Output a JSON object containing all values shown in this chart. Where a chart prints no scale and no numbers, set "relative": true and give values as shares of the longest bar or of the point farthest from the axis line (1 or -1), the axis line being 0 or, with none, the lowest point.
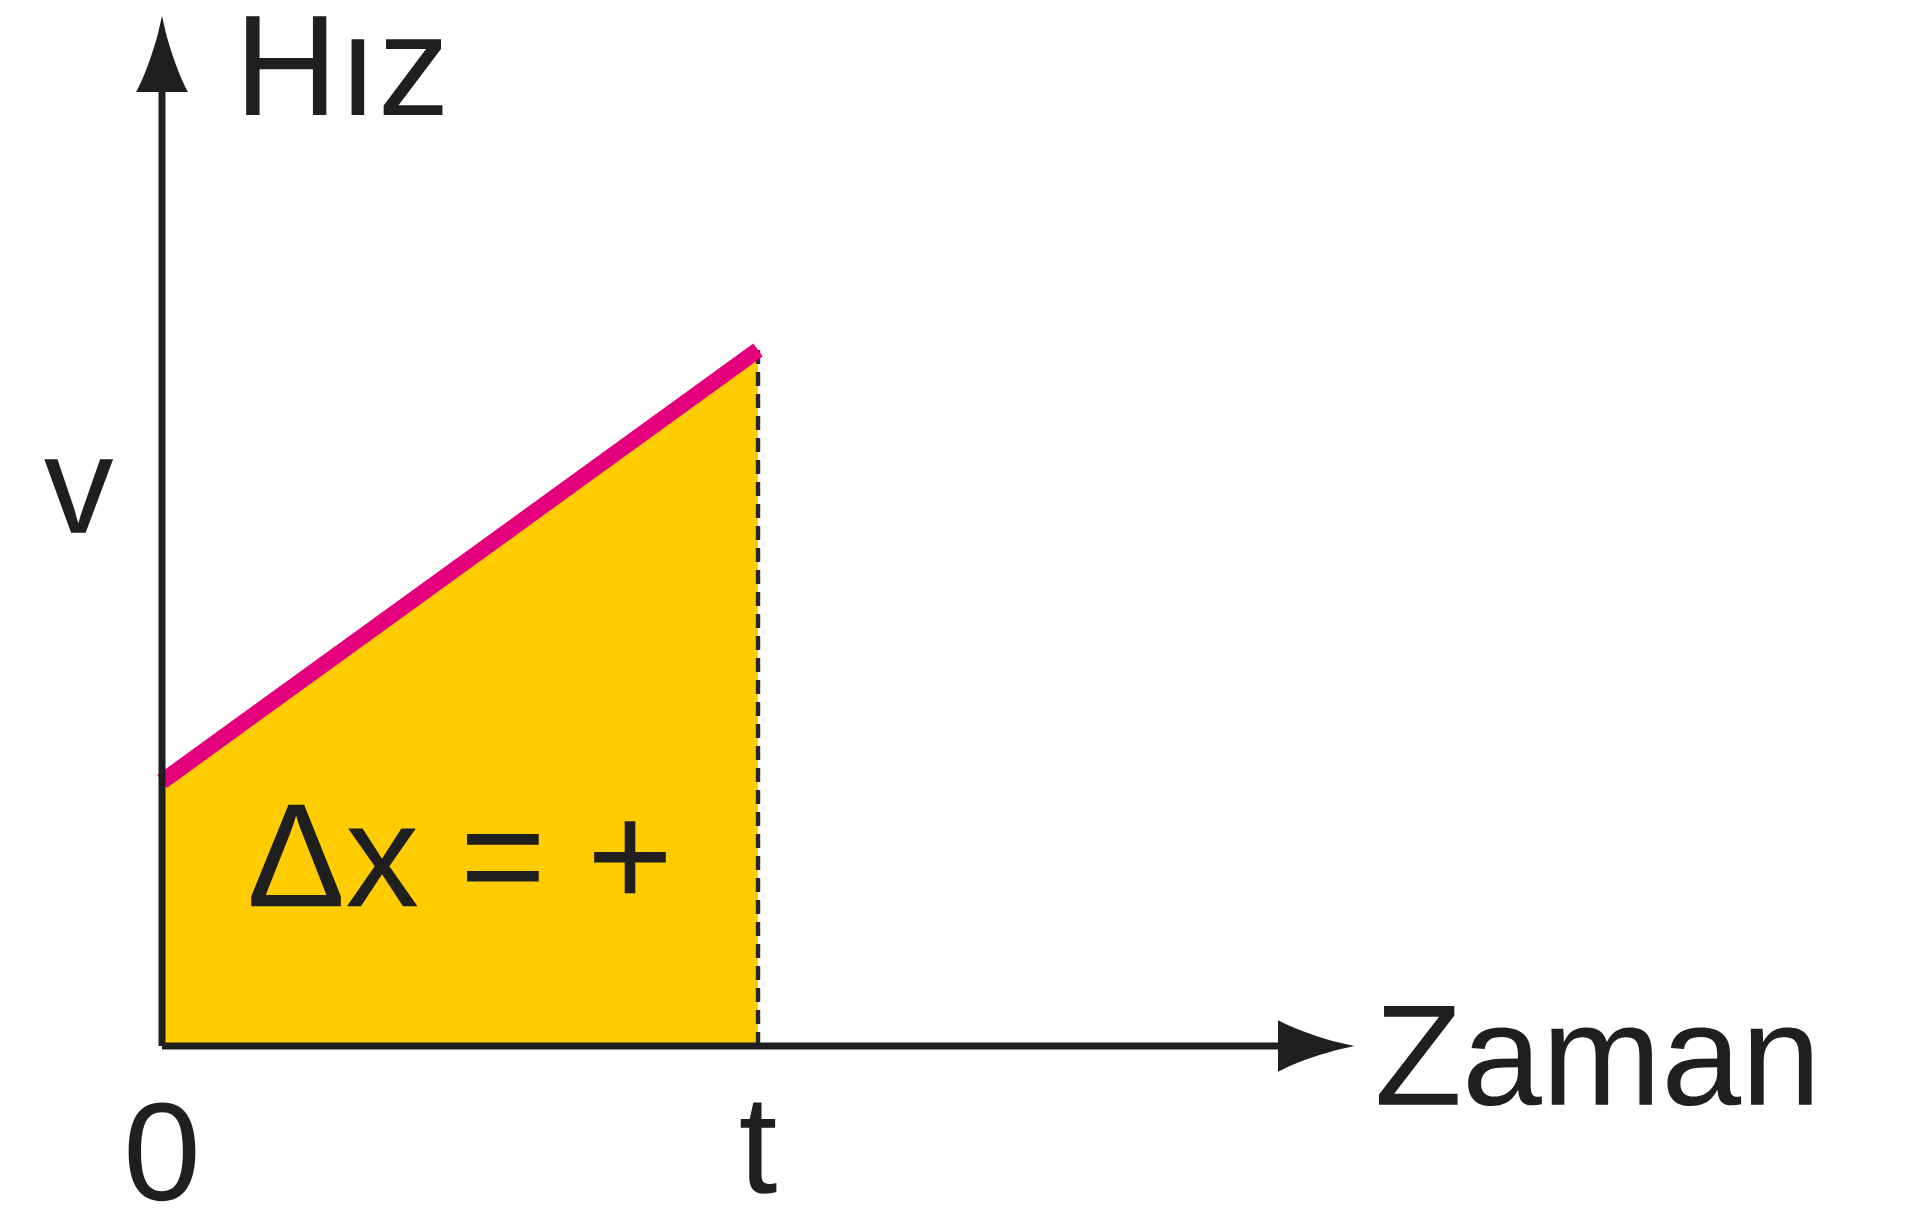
{
  "chart_data": {
    "type": "area",
    "relative": true,
    "xlabel": "Zaman",
    "ylabel": "Hız",
    "categories": [
      "0",
      "t"
    ],
    "series": [
      {
        "color": "#ffcc00",
        "values": [
          0.38,
          1
        ]
      },
      {
        "type": "line",
        "color": "#e4007c",
        "values": [
          0.38,
          1
        ]
      }
    ],
    "annotations": [
      "v",
      "Δx = +"
    ]
  }
}
